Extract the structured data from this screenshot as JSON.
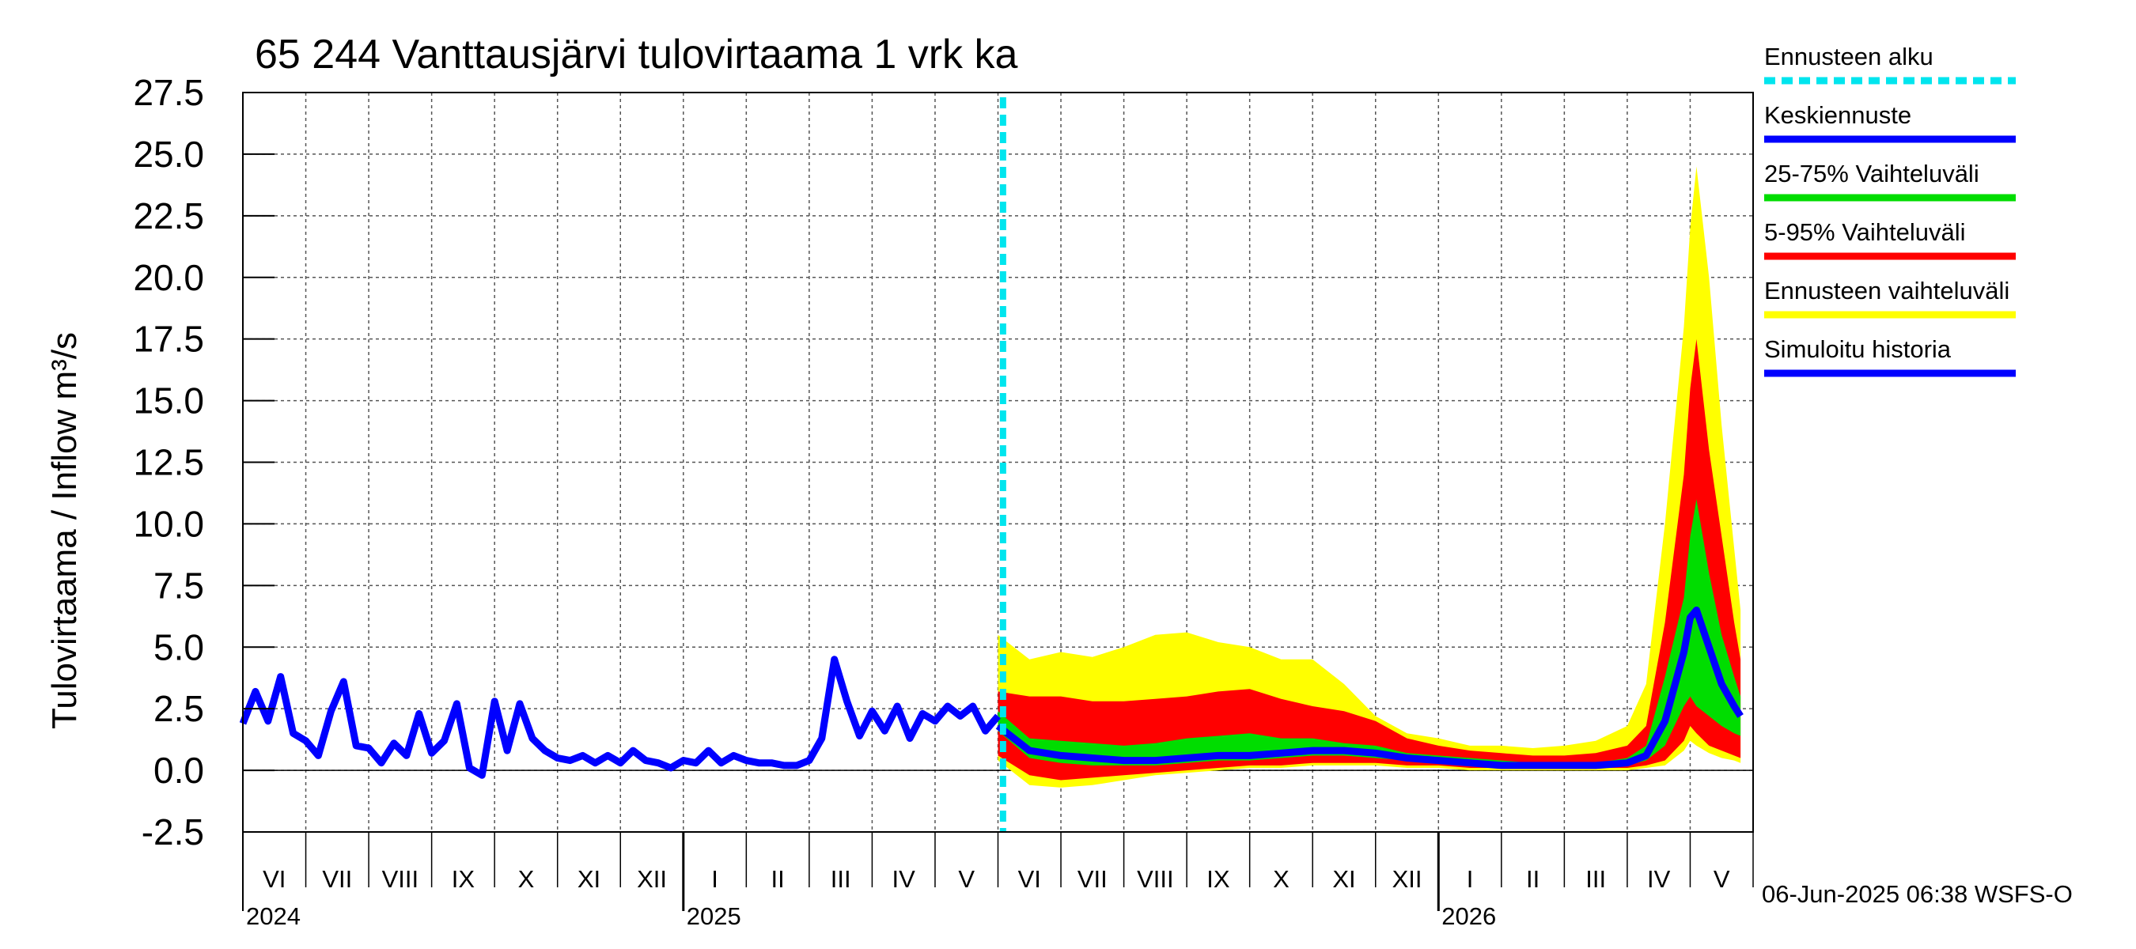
{
  "chart_data": {
    "type": "area",
    "title": "65 244 Vanttausjärvi tulovirtaama 1 vrk ka",
    "ylabel": "Tulovirtaama / Inflow   m³/s",
    "ylim": [
      -2.5,
      27.5
    ],
    "yticks": [
      "27.5",
      "25.0",
      "22.5",
      "20.0",
      "17.5",
      "15.0",
      "12.5",
      "10.0",
      "7.5",
      "5.0",
      "2.5",
      "0.0",
      "-2.5"
    ],
    "month_labels": [
      "VI",
      "VII",
      "VIII",
      "IX",
      "X",
      "XI",
      "XII",
      "I",
      "II",
      "III",
      "IV",
      "V",
      "VI",
      "VII",
      "VIII",
      "IX",
      "X",
      "XI",
      "XII",
      "I",
      "II",
      "III",
      "IV",
      "V"
    ],
    "year_labels": [
      "2024",
      "2025",
      "2026"
    ],
    "forecast_start": "2025-06-06",
    "legend": [
      {
        "label": "Ennusteen alku",
        "color": "#00e5ee",
        "style": "dashed"
      },
      {
        "label": "Keskiennuste",
        "color": "#0000ff",
        "style": "solid"
      },
      {
        "label": "25-75% Vaihteluväli",
        "color": "#00dd00",
        "style": "solid"
      },
      {
        "label": "5-95% Vaihteluväli",
        "color": "#ff0000",
        "style": "solid"
      },
      {
        "label": "Ennusteen vaihteluväli",
        "color": "#ffff00",
        "style": "solid"
      },
      {
        "label": "Simuloitu historia",
        "color": "#0000ff",
        "style": "solid"
      }
    ],
    "history_series": {
      "name": "Simuloitu historia",
      "month_index": [
        0.0,
        0.2,
        0.4,
        0.6,
        0.8,
        1.0,
        1.2,
        1.4,
        1.6,
        1.8,
        2.0,
        2.2,
        2.4,
        2.6,
        2.8,
        3.0,
        3.2,
        3.4,
        3.6,
        3.8,
        4.0,
        4.2,
        4.4,
        4.6,
        4.8,
        5.0,
        5.2,
        5.4,
        5.6,
        5.8,
        6.0,
        6.2,
        6.4,
        6.6,
        6.8,
        7.0,
        7.2,
        7.4,
        7.6,
        7.8,
        8.0,
        8.2,
        8.4,
        8.6,
        8.8,
        9.0,
        9.2,
        9.4,
        9.6,
        9.8,
        10.0,
        10.2,
        10.4,
        10.6,
        10.8,
        11.0,
        11.2,
        11.4,
        11.6,
        11.8,
        12.0
      ],
      "values": [
        1.9,
        3.2,
        2.0,
        3.8,
        1.5,
        1.2,
        0.6,
        2.4,
        3.6,
        1.0,
        0.9,
        0.3,
        1.1,
        0.6,
        2.3,
        0.7,
        1.2,
        2.7,
        0.1,
        -0.2,
        2.8,
        0.8,
        2.7,
        1.3,
        0.8,
        0.5,
        0.4,
        0.6,
        0.3,
        0.6,
        0.3,
        0.8,
        0.4,
        0.3,
        0.1,
        0.4,
        0.3,
        0.8,
        0.3,
        0.6,
        0.4,
        0.3,
        0.3,
        0.2,
        0.2,
        0.4,
        1.3,
        4.5,
        2.8,
        1.4,
        2.4,
        1.6,
        2.6,
        1.3,
        2.3,
        2.0,
        2.6,
        2.2,
        2.6,
        1.6,
        2.2
      ]
    },
    "forecast_series": {
      "month_index": [
        12.0,
        12.5,
        13.0,
        13.5,
        14.0,
        14.5,
        15.0,
        15.5,
        16.0,
        16.5,
        17.0,
        17.5,
        18.0,
        18.5,
        19.0,
        19.5,
        20.0,
        20.5,
        21.0,
        21.5,
        22.0,
        22.3,
        22.6,
        22.9,
        23.0,
        23.1,
        23.3,
        23.5,
        23.7,
        23.8
      ],
      "mean": [
        1.8,
        0.8,
        0.6,
        0.5,
        0.4,
        0.4,
        0.5,
        0.6,
        0.6,
        0.7,
        0.8,
        0.8,
        0.7,
        0.5,
        0.4,
        0.3,
        0.2,
        0.2,
        0.2,
        0.2,
        0.3,
        0.6,
        2.0,
        4.8,
        6.2,
        6.5,
        5.0,
        3.5,
        2.6,
        2.2
      ],
      "p25": [
        1.6,
        0.5,
        0.3,
        0.2,
        0.2,
        0.2,
        0.3,
        0.4,
        0.4,
        0.5,
        0.6,
        0.6,
        0.5,
        0.4,
        0.3,
        0.2,
        0.2,
        0.1,
        0.1,
        0.1,
        0.2,
        0.4,
        1.0,
        2.6,
        3.0,
        2.6,
        2.2,
        1.8,
        1.5,
        1.4
      ],
      "p75": [
        2.4,
        1.3,
        1.2,
        1.1,
        1.0,
        1.1,
        1.3,
        1.4,
        1.5,
        1.3,
        1.3,
        1.1,
        1.0,
        0.7,
        0.6,
        0.5,
        0.4,
        0.3,
        0.3,
        0.3,
        0.5,
        1.0,
        3.8,
        7.0,
        9.5,
        11.0,
        8.0,
        5.5,
        3.8,
        3.0
      ],
      "p05": [
        0.6,
        -0.2,
        -0.4,
        -0.3,
        -0.2,
        -0.1,
        0.0,
        0.1,
        0.2,
        0.2,
        0.3,
        0.3,
        0.3,
        0.2,
        0.2,
        0.1,
        0.1,
        0.1,
        0.1,
        0.1,
        0.1,
        0.2,
        0.4,
        1.2,
        1.8,
        1.5,
        1.0,
        0.8,
        0.6,
        0.5
      ],
      "p95": [
        3.2,
        3.0,
        3.0,
        2.8,
        2.8,
        2.9,
        3.0,
        3.2,
        3.3,
        2.9,
        2.6,
        2.4,
        2.0,
        1.3,
        1.0,
        0.8,
        0.7,
        0.6,
        0.6,
        0.7,
        1.0,
        1.8,
        6.0,
        12.0,
        15.5,
        17.5,
        13.0,
        9.5,
        6.0,
        4.5
      ],
      "min": [
        0.4,
        -0.6,
        -0.7,
        -0.6,
        -0.4,
        -0.2,
        -0.1,
        0.0,
        0.1,
        0.1,
        0.2,
        0.2,
        0.2,
        0.1,
        0.1,
        0.0,
        0.0,
        0.0,
        0.0,
        0.0,
        0.0,
        0.1,
        0.2,
        0.8,
        1.2,
        1.0,
        0.7,
        0.5,
        0.4,
        0.3
      ],
      "max": [
        5.5,
        4.5,
        4.8,
        4.6,
        5.0,
        5.5,
        5.6,
        5.2,
        5.0,
        4.5,
        4.5,
        3.5,
        2.2,
        1.5,
        1.3,
        1.0,
        1.0,
        0.9,
        1.0,
        1.2,
        1.8,
        3.5,
        10.0,
        18.0,
        22.0,
        24.5,
        20.0,
        14.0,
        9.0,
        6.5
      ]
    }
  },
  "footer": {
    "timestamp": "06-Jun-2025 06:38 WSFS-O"
  }
}
